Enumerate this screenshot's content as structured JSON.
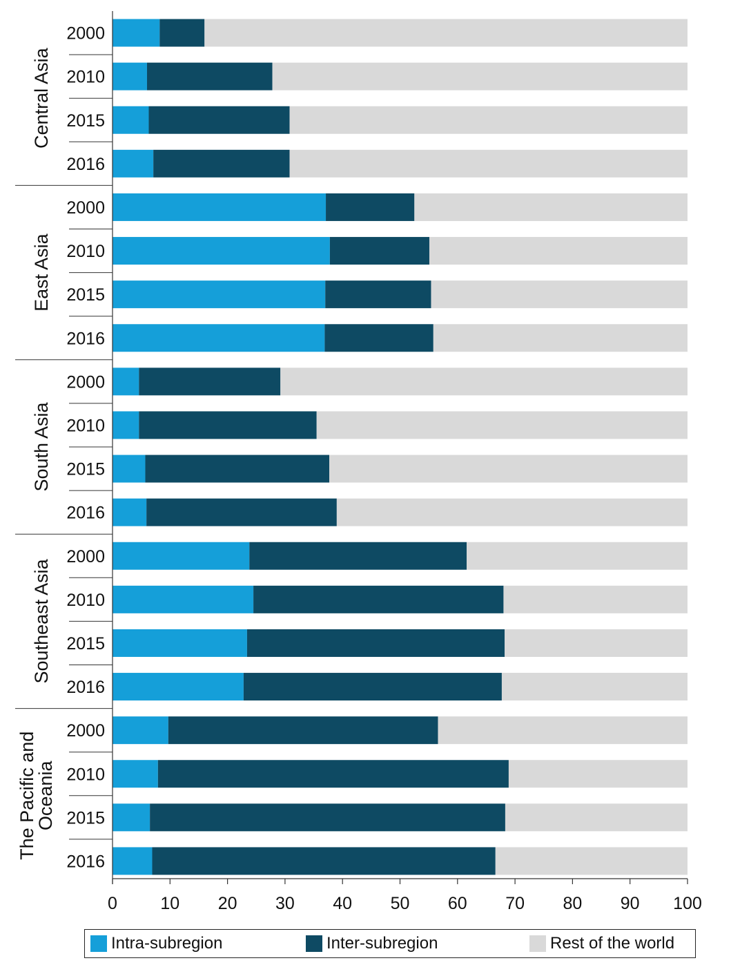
{
  "chart_data": {
    "type": "bar",
    "orientation": "horizontal",
    "stacked": true,
    "x_ticks": [
      "0",
      "10",
      "20",
      "30",
      "40",
      "50",
      "60",
      "70",
      "80",
      "90",
      "100"
    ],
    "xlim": [
      0,
      100
    ],
    "groups": [
      {
        "name": "Central Asia",
        "years": [
          "2000",
          "2010",
          "2015",
          "2016"
        ],
        "intra": [
          8.2,
          6.0,
          6.3,
          7.1
        ],
        "inter": [
          7.8,
          21.8,
          24.5,
          23.7
        ]
      },
      {
        "name": "East Asia",
        "years": [
          "2000",
          "2010",
          "2015",
          "2016"
        ],
        "intra": [
          37.1,
          37.8,
          37.0,
          36.9
        ],
        "inter": [
          15.4,
          17.3,
          18.4,
          18.9
        ]
      },
      {
        "name": "South Asia",
        "years": [
          "2000",
          "2010",
          "2015",
          "2016"
        ],
        "intra": [
          4.6,
          4.6,
          5.7,
          5.9
        ],
        "inter": [
          24.6,
          30.9,
          32.0,
          33.1
        ]
      },
      {
        "name": "Southeast Asia",
        "years": [
          "2000",
          "2010",
          "2015",
          "2016"
        ],
        "intra": [
          23.8,
          24.5,
          23.4,
          22.8
        ],
        "inter": [
          37.8,
          43.5,
          44.8,
          44.9
        ]
      },
      {
        "name": "The Pacific and Oceania",
        "name_lines": [
          "The Pacific and",
          "Oceania"
        ],
        "years": [
          "2000",
          "2010",
          "2015",
          "2016"
        ],
        "intra": [
          9.7,
          7.9,
          6.5,
          6.9
        ],
        "inter": [
          46.9,
          61.0,
          61.8,
          59.7
        ]
      }
    ],
    "series": [
      {
        "name": "Intra-subregion",
        "color": "#159fd9"
      },
      {
        "name": "Inter-subregion",
        "color": "#0e4a63"
      },
      {
        "name": "Rest of the world",
        "color": "#d9d9d9"
      }
    ],
    "legend_position": "bottom",
    "grid": false
  }
}
